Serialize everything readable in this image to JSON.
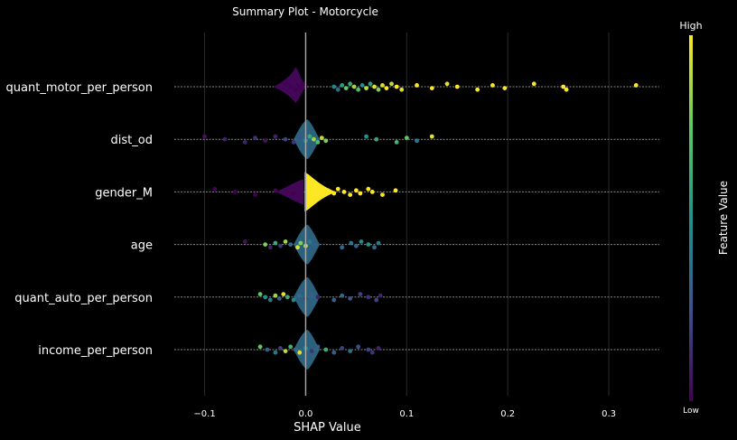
{
  "colors": {
    "background": "#000000",
    "text": "#ffffff",
    "grid": "#2a2a2a",
    "zero_line": "#aaaaaa",
    "row_line": "#8a8a8a",
    "low": "#440154",
    "high": "#fde725"
  },
  "chart_data": {
    "type": "scatter",
    "subtype": "shap-beeswarm-summary",
    "title": "Summary Plot - Motorcycle",
    "xlabel": "SHAP Value",
    "xlim": [
      -0.13,
      0.35
    ],
    "xticks": [
      -0.1,
      0.0,
      0.1,
      0.2,
      0.3
    ],
    "xtick_labels": [
      "−0.1",
      "0.0",
      "0.1",
      "0.2",
      "0.3"
    ],
    "grid": "vertical",
    "colorbar": {
      "label": "Feature Value",
      "high_label": "High",
      "low_label": "Low",
      "colormap": "viridis"
    },
    "features": [
      {
        "name": "quant_motor_per_person",
        "points": [
          [
            -0.02,
            0.0
          ],
          [
            -0.015,
            0.0
          ],
          [
            -0.01,
            0.0
          ],
          [
            -0.008,
            0.0
          ],
          [
            -0.005,
            0.0
          ],
          [
            -0.003,
            0.0
          ],
          [
            0.028,
            0.45
          ],
          [
            0.032,
            0.35
          ],
          [
            0.036,
            0.55
          ],
          [
            0.04,
            0.75
          ],
          [
            0.044,
            0.6
          ],
          [
            0.048,
            0.85
          ],
          [
            0.052,
            0.7
          ],
          [
            0.056,
            0.5
          ],
          [
            0.06,
            0.9
          ],
          [
            0.064,
            0.55
          ],
          [
            0.068,
            0.95
          ],
          [
            0.072,
            0.8
          ],
          [
            0.076,
            0.95
          ],
          [
            0.08,
            1.0
          ],
          [
            0.085,
            0.9
          ],
          [
            0.09,
            1.0
          ],
          [
            0.095,
            0.95
          ],
          [
            0.11,
            1.0
          ],
          [
            0.125,
            1.0
          ],
          [
            0.14,
            0.95
          ],
          [
            0.15,
            1.0
          ],
          [
            0.17,
            1.0
          ],
          [
            0.185,
            1.0
          ],
          [
            0.197,
            1.0
          ],
          [
            0.226,
            1.0
          ],
          [
            0.255,
            1.0
          ],
          [
            0.258,
            1.0
          ],
          [
            0.327,
            1.0
          ]
        ]
      },
      {
        "name": "dist_od",
        "points": [
          [
            -0.1,
            0.05
          ],
          [
            -0.08,
            0.1
          ],
          [
            -0.06,
            0.1
          ],
          [
            -0.05,
            0.15
          ],
          [
            -0.04,
            0.05
          ],
          [
            -0.03,
            0.1
          ],
          [
            -0.02,
            0.2
          ],
          [
            -0.012,
            0.15
          ],
          [
            -0.006,
            0.25
          ],
          [
            0.0,
            0.5
          ],
          [
            0.004,
            0.6
          ],
          [
            0.008,
            0.85
          ],
          [
            0.012,
            0.7
          ],
          [
            0.016,
            0.9
          ],
          [
            0.02,
            0.8
          ],
          [
            0.06,
            0.5
          ],
          [
            0.07,
            0.6
          ],
          [
            0.09,
            0.65
          ],
          [
            0.1,
            0.75
          ],
          [
            0.11,
            0.4
          ],
          [
            0.125,
            0.95
          ]
        ]
      },
      {
        "name": "gender_M",
        "points": [
          [
            -0.09,
            0.0
          ],
          [
            -0.07,
            0.0
          ],
          [
            -0.05,
            0.0
          ],
          [
            -0.03,
            0.0
          ],
          [
            -0.012,
            0.0
          ],
          [
            0.004,
            1.0
          ],
          [
            0.01,
            1.0
          ],
          [
            0.016,
            1.0
          ],
          [
            0.022,
            1.0
          ],
          [
            0.028,
            1.0
          ],
          [
            0.032,
            1.0
          ],
          [
            0.038,
            1.0
          ],
          [
            0.044,
            1.0
          ],
          [
            0.05,
            1.0
          ],
          [
            0.054,
            1.0
          ],
          [
            0.062,
            1.0
          ],
          [
            0.066,
            1.0
          ],
          [
            0.076,
            1.0
          ],
          [
            0.089,
            1.0
          ]
        ]
      },
      {
        "name": "age",
        "points": [
          [
            -0.06,
            0.05
          ],
          [
            -0.04,
            0.8
          ],
          [
            -0.035,
            0.1
          ],
          [
            -0.03,
            0.6
          ],
          [
            -0.025,
            0.15
          ],
          [
            -0.02,
            0.85
          ],
          [
            -0.015,
            0.35
          ],
          [
            -0.008,
            0.95
          ],
          [
            -0.005,
            0.8
          ],
          [
            0.0,
            0.9
          ],
          [
            0.004,
            0.4
          ],
          [
            0.008,
            0.3
          ],
          [
            0.036,
            0.35
          ],
          [
            0.045,
            0.4
          ],
          [
            0.05,
            0.3
          ],
          [
            0.055,
            0.45
          ],
          [
            0.062,
            0.5
          ],
          [
            0.068,
            0.35
          ],
          [
            0.072,
            0.4
          ]
        ]
      },
      {
        "name": "quant_auto_per_person",
        "points": [
          [
            -0.045,
            0.75
          ],
          [
            -0.04,
            0.5
          ],
          [
            -0.035,
            0.4
          ],
          [
            -0.03,
            0.85
          ],
          [
            -0.026,
            0.3
          ],
          [
            -0.022,
            0.95
          ],
          [
            -0.018,
            0.6
          ],
          [
            -0.012,
            0.45
          ],
          [
            -0.006,
            0.35
          ],
          [
            0.0,
            0.2
          ],
          [
            0.006,
            0.3
          ],
          [
            0.012,
            0.1
          ],
          [
            0.028,
            0.3
          ],
          [
            0.036,
            0.35
          ],
          [
            0.044,
            0.25
          ],
          [
            0.054,
            0.2
          ],
          [
            0.062,
            0.15
          ],
          [
            0.07,
            0.2
          ],
          [
            0.074,
            0.1
          ]
        ]
      },
      {
        "name": "income_per_person",
        "points": [
          [
            -0.045,
            0.75
          ],
          [
            -0.038,
            0.3
          ],
          [
            -0.03,
            0.4
          ],
          [
            -0.025,
            0.2
          ],
          [
            -0.02,
            0.9
          ],
          [
            -0.015,
            0.65
          ],
          [
            -0.01,
            0.35
          ],
          [
            -0.006,
            0.95
          ],
          [
            0.0,
            0.5
          ],
          [
            0.006,
            0.15
          ],
          [
            0.012,
            0.3
          ],
          [
            0.02,
            0.6
          ],
          [
            0.028,
            0.3
          ],
          [
            0.036,
            0.2
          ],
          [
            0.044,
            0.35
          ],
          [
            0.052,
            0.25
          ],
          [
            0.062,
            0.2
          ],
          [
            0.066,
            0.15
          ],
          [
            0.072,
            0.1
          ]
        ]
      }
    ]
  }
}
